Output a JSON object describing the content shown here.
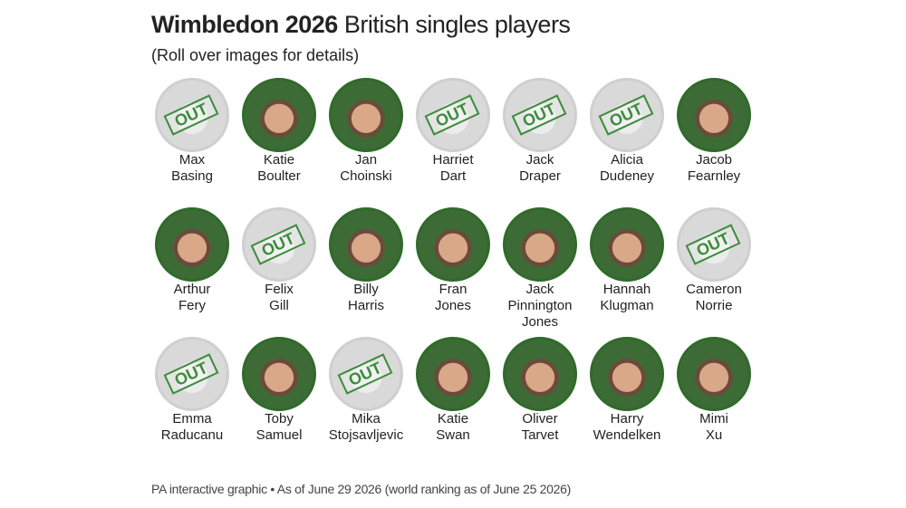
{
  "header": {
    "title_bold": "Wimbledon 2026",
    "title_rest": "British singles players",
    "subtitle": "(Roll over images for details)"
  },
  "players": [
    {
      "name_lines": [
        "Max",
        "Basing"
      ],
      "status": "OUT"
    },
    {
      "name_lines": [
        "Katie",
        "Boulter"
      ]
    },
    {
      "name_lines": [
        "Jan",
        "Choinski"
      ]
    },
    {
      "name_lines": [
        "Harriet",
        "Dart"
      ],
      "status": "OUT"
    },
    {
      "name_lines": [
        "Jack",
        "Draper"
      ],
      "status": "OUT"
    },
    {
      "name_lines": [
        "Alicia",
        "Dudeney"
      ],
      "status": "OUT"
    },
    {
      "name_lines": [
        "Jacob",
        "Fearnley"
      ]
    },
    {
      "name_lines": [
        "Arthur",
        "Fery"
      ]
    },
    {
      "name_lines": [
        "Felix",
        "Gill"
      ],
      "status": "OUT"
    },
    {
      "name_lines": [
        "Billy",
        "Harris"
      ]
    },
    {
      "name_lines": [
        "Fran",
        "Jones"
      ]
    },
    {
      "name_lines": [
        "Jack",
        "Pinnington",
        "Jones"
      ]
    },
    {
      "name_lines": [
        "Hannah",
        "Klugman"
      ]
    },
    {
      "name_lines": [
        "Cameron",
        "Norrie"
      ],
      "status": "OUT"
    },
    {
      "name_lines": [
        "Emma",
        "Raducanu"
      ],
      "status": "OUT"
    },
    {
      "name_lines": [
        "Toby",
        "Samuel"
      ]
    },
    {
      "name_lines": [
        "Mika",
        "Stojsavljevic"
      ],
      "status": "OUT"
    },
    {
      "name_lines": [
        "Katie",
        "Swan"
      ]
    },
    {
      "name_lines": [
        "Oliver",
        "Tarvet"
      ]
    },
    {
      "name_lines": [
        "Harry",
        "Wendelken"
      ]
    },
    {
      "name_lines": [
        "Mimi",
        "Xu"
      ]
    }
  ],
  "footer": "PA interactive graphic • As of June 29 2026 (world ranking as of June 25 2026)"
}
